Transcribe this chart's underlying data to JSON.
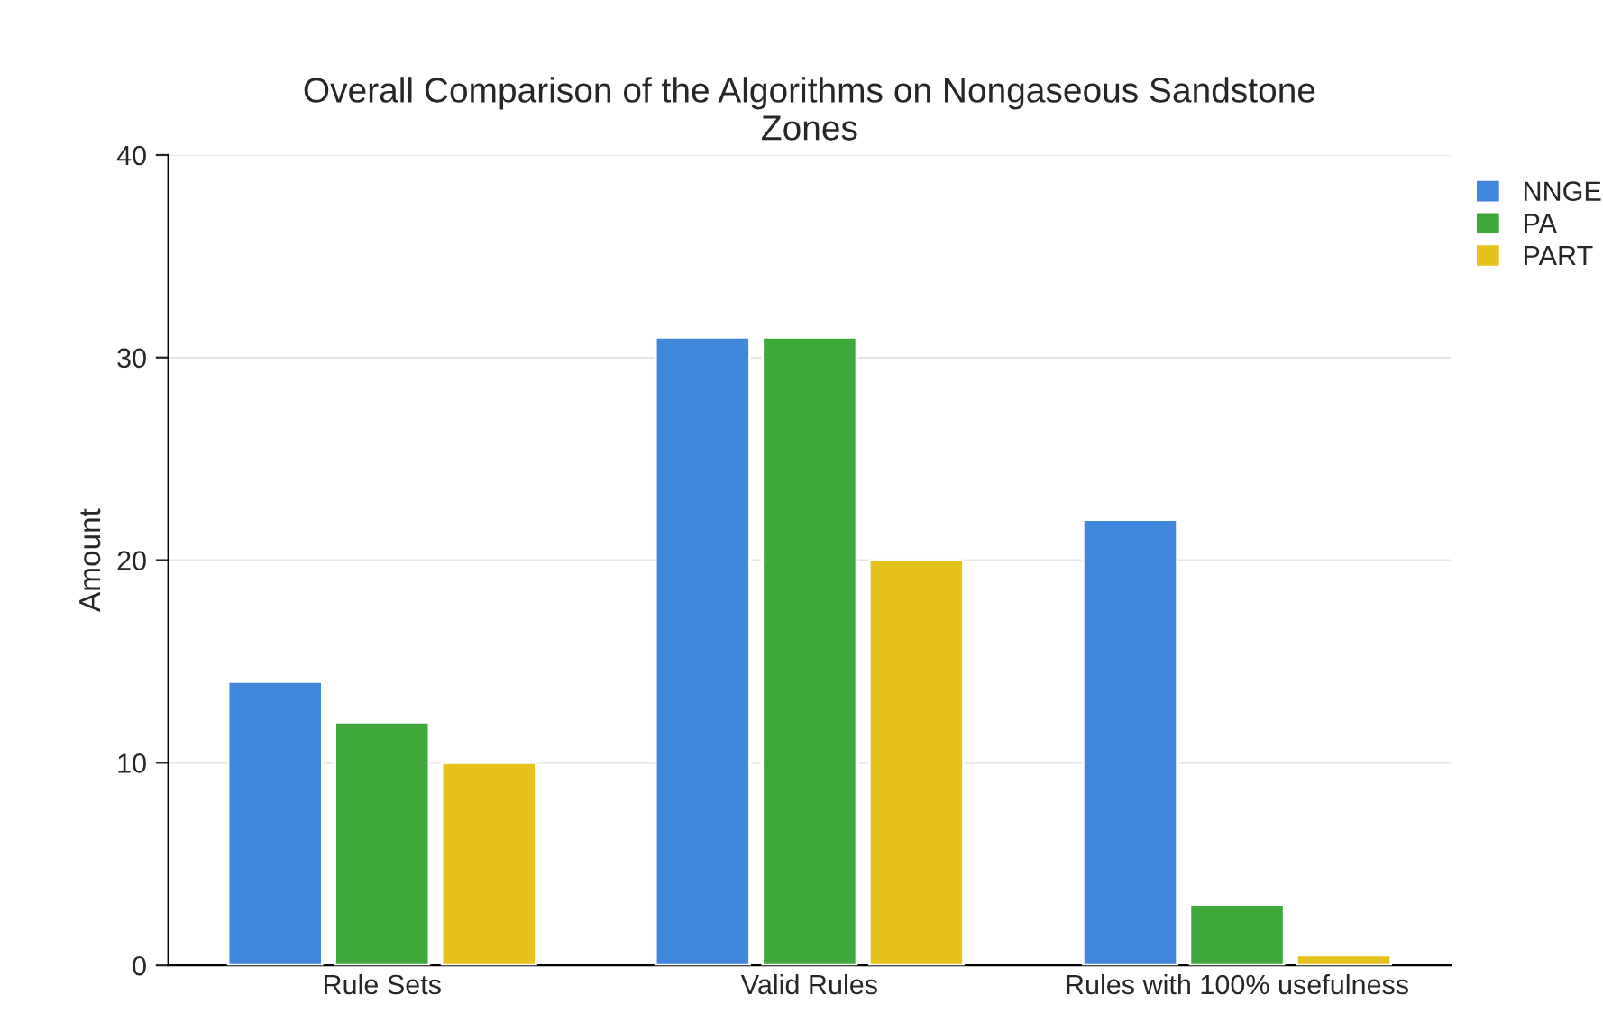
{
  "chart_data": {
    "type": "bar",
    "title": "Overall Comparison of the Algorithms on Nongaseous Sandstone\nZones",
    "ylabel": "Amount",
    "categories": [
      "Rule Sets",
      "Valid Rules",
      "Rules with 100% usefulness"
    ],
    "series": [
      {
        "name": "NNGE",
        "color": "#3f86dc",
        "values": [
          14,
          31,
          22
        ]
      },
      {
        "name": "PA",
        "color": "#3fa83a",
        "values": [
          12,
          31,
          3
        ]
      },
      {
        "name": "PART",
        "color": "#e8c21c",
        "values": [
          10,
          20,
          0.5
        ]
      }
    ],
    "ylim": [
      0,
      40
    ],
    "yticks": [
      0,
      10,
      20,
      30,
      40
    ],
    "grid": "y",
    "legend": "top right"
  }
}
